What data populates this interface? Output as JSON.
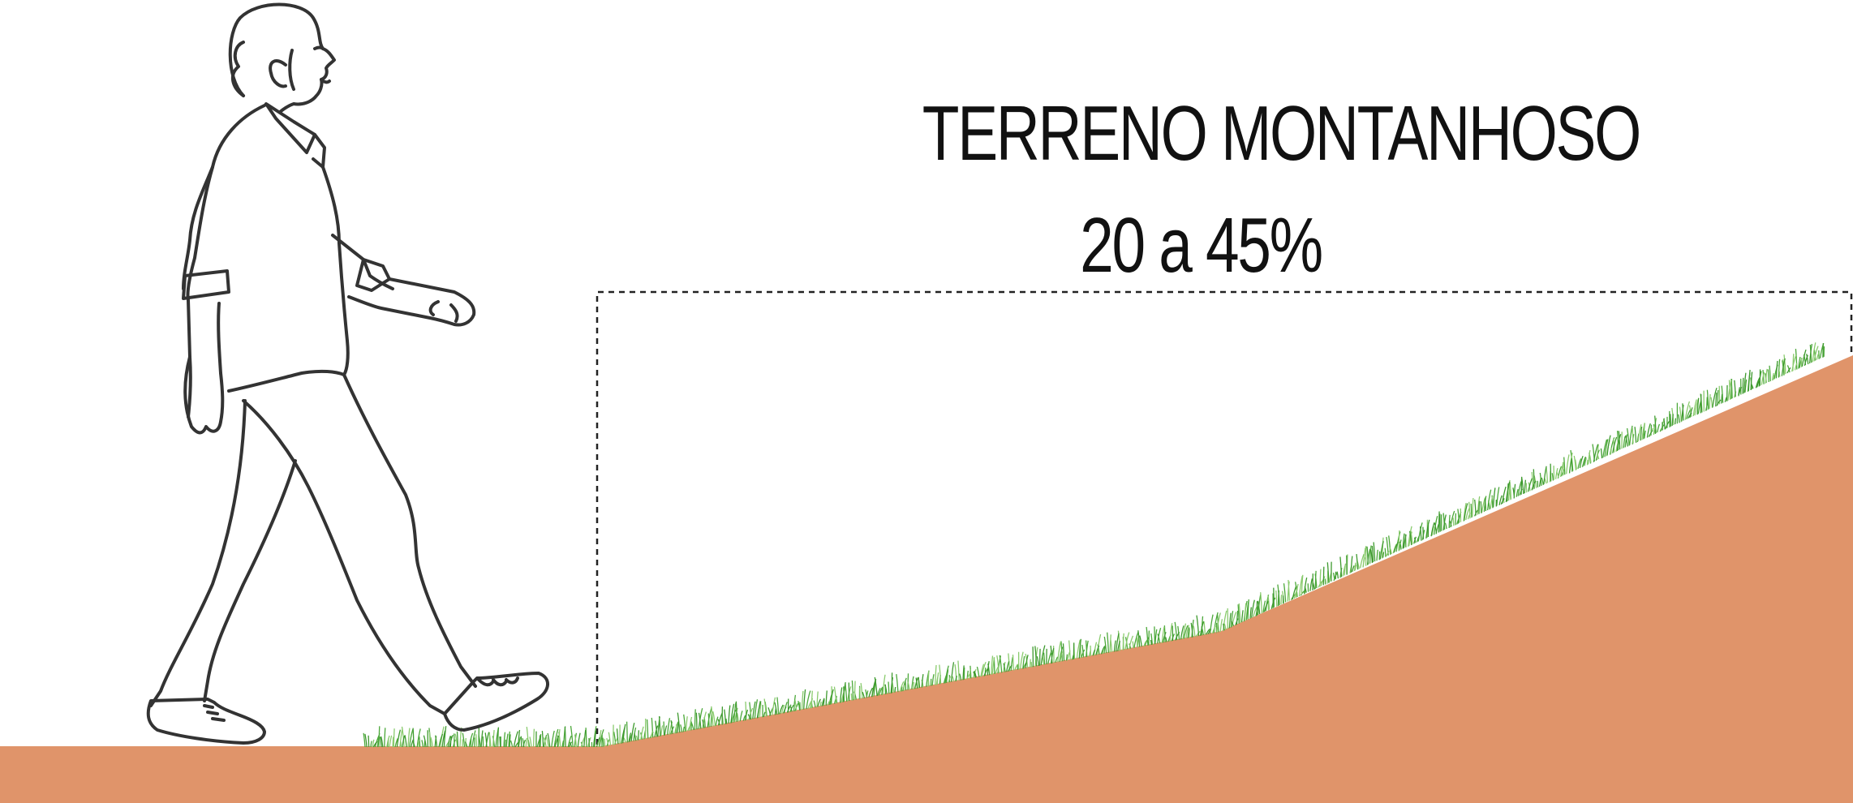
{
  "diagram": {
    "title": "TERRENO  MONTANHOSO",
    "slope_range": "20 a 45%"
  },
  "colors": {
    "terrain": "#E0946A",
    "grass": "#4CA83A",
    "grass_light": "#8ACB6E",
    "outline": "#333333",
    "text": "#111111",
    "dashed_guide": "#222222"
  },
  "figure": {
    "icon": "walking-man-icon"
  }
}
